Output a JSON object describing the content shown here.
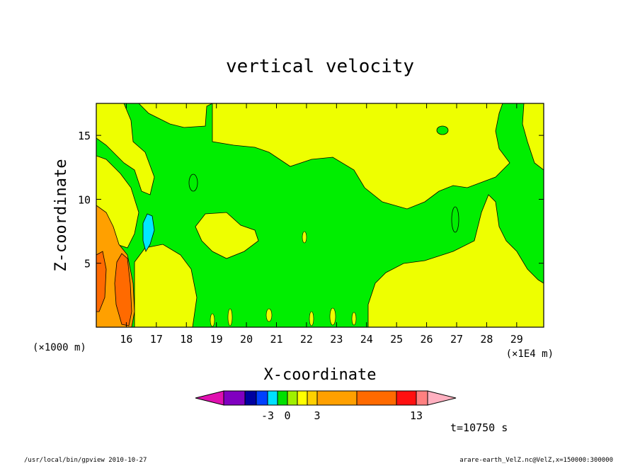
{
  "chart_data": {
    "type": "heatmap",
    "title": "vertical velocity",
    "xlabel": "X-coordinate",
    "ylabel": "Z-coordinate",
    "x_unit_left": "(×1000 m)",
    "x_unit_right": "(×1E4 m)",
    "xlim": [
      15.0,
      29.9
    ],
    "ylim": [
      0,
      17.5
    ],
    "x_ticks": [
      "16",
      "17",
      "18",
      "19",
      "20",
      "21",
      "22",
      "23",
      "24",
      "25",
      "26",
      "27",
      "28",
      "29"
    ],
    "y_ticks": [
      "5",
      "10",
      "15"
    ],
    "colorbar": {
      "colors": [
        "#e010b0",
        "#8000c0",
        "#0000a0",
        "#0040ff",
        "#00e0ff",
        "#00e000",
        "#a0f000",
        "#ffff00",
        "#ffd000",
        "#ffa000",
        "#ff6a00",
        "#ff1010",
        "#ff8080",
        "#ffb0c0"
      ],
      "labels": [
        "-3",
        "0",
        "3",
        "13"
      ]
    },
    "regions": [
      {
        "level": "positive",
        "color": "#eeff00",
        "description_free": true
      },
      {
        "level": "near-zero",
        "color": "#00ee00"
      },
      {
        "level": "weak-negative",
        "color": "#00e8ff"
      },
      {
        "level": "moderate-positive",
        "color": "#ffa000"
      },
      {
        "level": "strong-positive",
        "color": "#ff6a00"
      }
    ]
  },
  "annotations": {
    "time": "t=10750 s",
    "footer_left": "/usr/local/bin/gpview   2010-10-27",
    "footer_right": "arare-earth_VelZ.nc@VelZ,x=150000:300000"
  }
}
